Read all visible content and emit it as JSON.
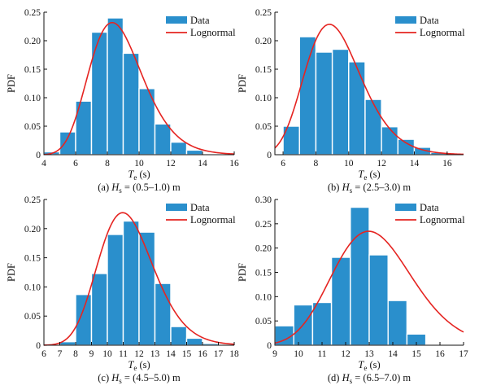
{
  "colors": {
    "bar": "#2a8fcc",
    "fit": "#e52421"
  },
  "chart_data": [
    {
      "type": "bar",
      "ylabel": "PDF",
      "xlabel_main": "T",
      "xlabel_sub": "e",
      "xlabel_unit": "(s)",
      "caption_prefix": "(a)",
      "caption_var": "H",
      "caption_sub": "s",
      "caption_range": "= (0.5–1.0) m",
      "legend": {
        "data": "Data",
        "fit": "Lognormal",
        "position": "top-right"
      },
      "xlim": [
        4,
        16
      ],
      "ylim": [
        0,
        0.25
      ],
      "xticks": [
        "4",
        "6",
        "8",
        "10",
        "12",
        "14",
        "16"
      ],
      "yticks": [
        "0",
        "0.05",
        "0.10",
        "0.15",
        "0.20",
        "0.25"
      ],
      "bin_edges": [
        4,
        5,
        6,
        7,
        8,
        9,
        10,
        11,
        12,
        13,
        14
      ],
      "values": [
        0.005,
        0.04,
        0.094,
        0.215,
        0.24,
        0.178,
        0.116,
        0.054,
        0.022,
        0.008
      ],
      "fit_mu": 2.158,
      "fit_sigma": 0.203
    },
    {
      "type": "bar",
      "ylabel": "PDF",
      "xlabel_main": "T",
      "xlabel_sub": "e",
      "xlabel_unit": "(s)",
      "caption_prefix": "(b)",
      "caption_var": "H",
      "caption_sub": "s",
      "caption_range": "= (2.5–3.0) m",
      "legend": {
        "data": "Data",
        "fit": "Lognormal",
        "position": "top-right"
      },
      "xlim": [
        5.5,
        17
      ],
      "ylim": [
        0,
        0.25
      ],
      "xticks": [
        "6",
        "8",
        "10",
        "12",
        "14",
        "16"
      ],
      "xtick_values": [
        6,
        8,
        10,
        12,
        14,
        16
      ],
      "yticks": [
        "0",
        "0.05",
        "0.10",
        "0.15",
        "0.20",
        "0.25"
      ],
      "bin_edges": [
        6,
        7,
        8,
        9,
        10,
        11,
        12,
        13,
        14,
        15,
        16
      ],
      "values": [
        0.05,
        0.207,
        0.18,
        0.185,
        0.163,
        0.097,
        0.049,
        0.027,
        0.013,
        0.004
      ],
      "fit_mu": 2.215,
      "fit_sigma": 0.194
    },
    {
      "type": "bar",
      "ylabel": "PDF",
      "xlabel_main": "T",
      "xlabel_sub": "e",
      "xlabel_unit": "(s)",
      "caption_prefix": "(c)",
      "caption_var": "H",
      "caption_sub": "s",
      "caption_range": "= (4.5–5.0) m",
      "legend": {
        "data": "Data",
        "fit": "Lognormal",
        "position": "top-right"
      },
      "xlim": [
        6,
        18
      ],
      "ylim": [
        0,
        0.25
      ],
      "xticks": [
        "6",
        "7",
        "8",
        "9",
        "10",
        "11",
        "12",
        "13",
        "14",
        "15",
        "16",
        "17",
        "18"
      ],
      "yticks": [
        "0",
        "0.05",
        "0.10",
        "0.15",
        "0.20",
        "0.25"
      ],
      "bin_edges": [
        7,
        8,
        9,
        10,
        11,
        12,
        13,
        14,
        15,
        16,
        17
      ],
      "values": [
        0.006,
        0.087,
        0.123,
        0.19,
        0.213,
        0.194,
        0.106,
        0.032,
        0.012,
        0.003
      ],
      "fit_mu": 2.42,
      "fit_sigma": 0.158
    },
    {
      "type": "bar",
      "ylabel": "PDF",
      "xlabel_main": "T",
      "xlabel_sub": "e",
      "xlabel_unit": "(s)",
      "caption_prefix": "(d)",
      "caption_var": "H",
      "caption_sub": "s",
      "caption_range": "= (6.5–7.0) m",
      "legend": {
        "data": "Data",
        "fit": "Lognormal",
        "position": "top-right"
      },
      "xlim": [
        9,
        17
      ],
      "ylim": [
        0,
        0.3
      ],
      "xticks": [
        "9",
        "10",
        "11",
        "12",
        "13",
        "14",
        "15",
        "16",
        "17"
      ],
      "yticks": [
        "0",
        "0.05",
        "0.10",
        "0.15",
        "0.20",
        "0.25",
        "0.30"
      ],
      "bin_edges": [
        9,
        9.8,
        10.6,
        11.4,
        12.2,
        13.0,
        13.8,
        14.6,
        15.4,
        16.2,
        17
      ],
      "values": [
        0.04,
        0.083,
        0.088,
        0.181,
        0.284,
        0.186,
        0.092,
        0.023,
        0,
        0
      ],
      "fit_mu": 2.58,
      "fit_sigma": 0.13
    }
  ]
}
